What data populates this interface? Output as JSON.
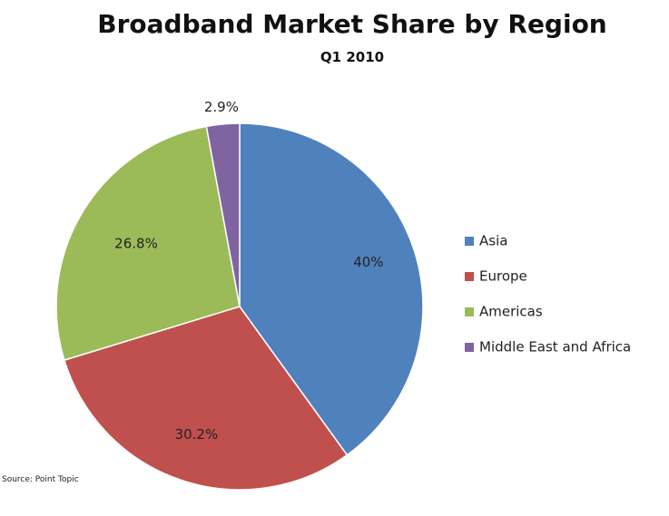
{
  "chart_data": {
    "type": "pie",
    "title": "Broadband Market Share by Region",
    "subtitle": "Q1 2010",
    "source": "Source: Point Topic",
    "start_angle": "12 o'clock",
    "direction": "clockwise",
    "legend": "right",
    "slices": [
      {
        "name": "Asia",
        "value": 40,
        "label": "40%",
        "color": "#4F81BD"
      },
      {
        "name": "Europe",
        "value": 30.2,
        "label": "30.2%",
        "color": "#C0504D"
      },
      {
        "name": "Americas",
        "value": 26.8,
        "label": "26.8%",
        "color": "#9BBB59"
      },
      {
        "name": "Middle East and Africa",
        "value": 2.9,
        "label": "2.9%",
        "color": "#8064A2"
      }
    ]
  }
}
